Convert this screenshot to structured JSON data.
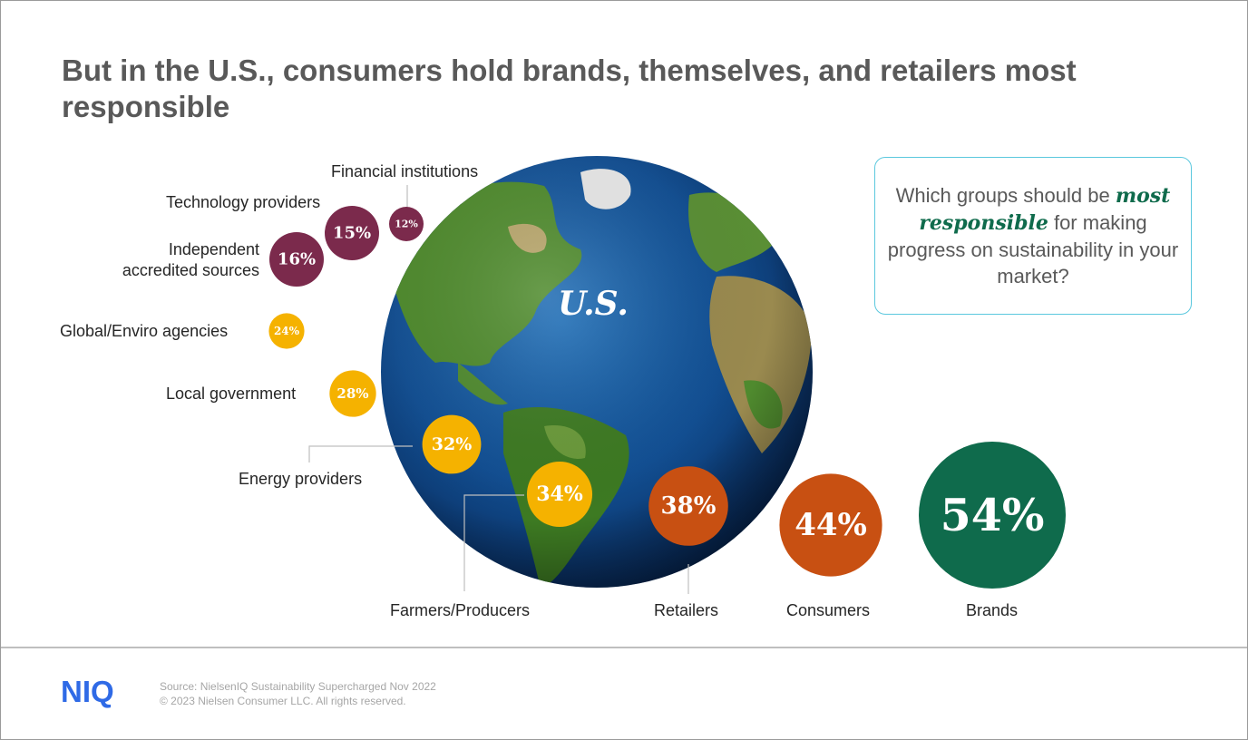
{
  "title": "But in the U.S., consumers hold brands, themselves, and retailers most responsible",
  "question": {
    "pre": "Which groups should be ",
    "emphasis": "most responsible",
    "post": " for making progress on sustainability in your market?"
  },
  "globe_label": "U.S.",
  "footer": {
    "logo": "NIQ",
    "source_line": "Source: NielsenIQ Sustainability Supercharged  Nov 2022",
    "copyright_line": "© 2023 Nielsen Consumer LLC. All rights reserved."
  },
  "colors": {
    "high": "#0f6b4c",
    "orange": "#c85012",
    "yellow": "#f5b200",
    "low": "#7b2a4c",
    "accent_border": "#5bc8de"
  },
  "chart_data": {
    "type": "bubble",
    "title": "But in the U.S., consumers hold brands, themselves, and retailers most responsible",
    "unit": "%",
    "categories": [
      "Brands",
      "Consumers",
      "Retailers",
      "Farmers/Producers",
      "Energy providers",
      "Local government",
      "Global/Enviro agencies",
      "Independent accredited sources",
      "Technology providers",
      "Financial institutions"
    ],
    "values": [
      54,
      44,
      38,
      34,
      32,
      28,
      24,
      16,
      15,
      12
    ],
    "value_labels": [
      "54%",
      "44%",
      "38%",
      "34%",
      "32%",
      "28%",
      "24%",
      "16%",
      "15%",
      "12%"
    ],
    "color_groups": [
      "high",
      "orange",
      "orange",
      "yellow",
      "yellow",
      "yellow",
      "yellow",
      "low",
      "low",
      "low"
    ]
  }
}
